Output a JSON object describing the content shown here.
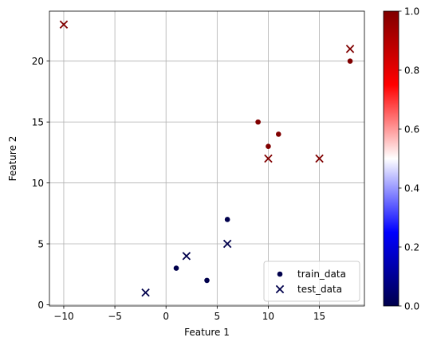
{
  "chart_data": {
    "type": "scatter",
    "xlabel": "Feature 1",
    "ylabel": "Feature 2",
    "xlim": [
      -11.4,
      19.4
    ],
    "ylim": [
      -0.1,
      24.1
    ],
    "xticks": [
      -10,
      -5,
      0,
      5,
      10,
      15
    ],
    "yticks": [
      0,
      5,
      10,
      15,
      20
    ],
    "grid": true,
    "legend_position": "lower-right",
    "series": [
      {
        "name": "train_data",
        "marker": "circle",
        "points": [
          {
            "x": 1,
            "y": 3,
            "c": 0
          },
          {
            "x": 4,
            "y": 2,
            "c": 0
          },
          {
            "x": 6,
            "y": 7,
            "c": 0
          },
          {
            "x": 9,
            "y": 15,
            "c": 1
          },
          {
            "x": 10,
            "y": 13,
            "c": 1
          },
          {
            "x": 11,
            "y": 14,
            "c": 1
          },
          {
            "x": 18,
            "y": 20,
            "c": 1
          }
        ]
      },
      {
        "name": "test_data",
        "marker": "x",
        "points": [
          {
            "x": -10,
            "y": 23,
            "c": 1
          },
          {
            "x": -2,
            "y": 1,
            "c": 0
          },
          {
            "x": 2,
            "y": 4,
            "c": 0
          },
          {
            "x": 6,
            "y": 5,
            "c": 0
          },
          {
            "x": 10,
            "y": 12,
            "c": 1
          },
          {
            "x": 15,
            "y": 12,
            "c": 1
          },
          {
            "x": 18,
            "y": 21,
            "c": 1
          }
        ]
      }
    ],
    "colorbar": {
      "colormap": "seismic",
      "range": [
        0,
        1
      ],
      "ticks": [
        0,
        0.2,
        0.4,
        0.6,
        0.8,
        1
      ],
      "tick_labels": [
        "0.0",
        "0.2",
        "0.4",
        "0.6",
        "0.8",
        "1.0"
      ]
    },
    "colors": {
      "class0": "#00004c",
      "class1": "#800000",
      "grid": "#b0b0b0",
      "legend_marker": "#00004c"
    }
  }
}
